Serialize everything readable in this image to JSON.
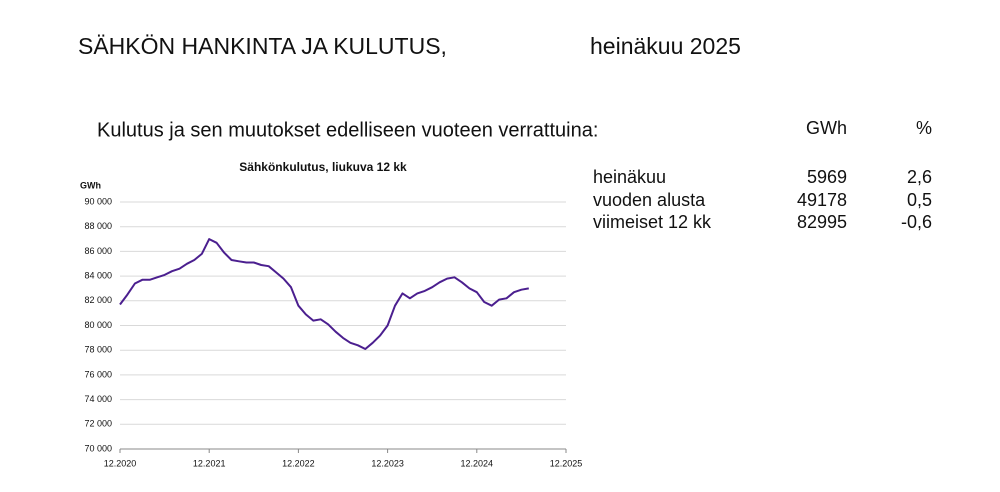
{
  "header": {
    "title": "SÄHKÖN HANKINTA JA KULUTUS,",
    "period": "heinäkuu 2025"
  },
  "subtitle": "Kulutus ja sen muutokset edelliseen vuoteen verrattuina:",
  "table": {
    "columns": [
      "GWh",
      "%"
    ],
    "rows": [
      [
        "heinäkuu",
        "5969",
        "2,6"
      ],
      [
        "vuoden alusta",
        "49178",
        "0,5"
      ],
      [
        "viimeiset 12 kk",
        "82995",
        "-0,6"
      ]
    ]
  },
  "chart_data": {
    "type": "line",
    "title": "Sähkönkulutus, liukuva 12 kk",
    "y_label": "GWh",
    "x": [
      "12.2020",
      "1.2021",
      "2.2021",
      "3.2021",
      "4.2021",
      "5.2021",
      "6.2021",
      "7.2021",
      "8.2021",
      "9.2021",
      "10.2021",
      "11.2021",
      "12.2021",
      "1.2022",
      "2.2022",
      "3.2022",
      "4.2022",
      "5.2022",
      "6.2022",
      "7.2022",
      "8.2022",
      "9.2022",
      "10.2022",
      "11.2022",
      "12.2022",
      "1.2023",
      "2.2023",
      "3.2023",
      "4.2023",
      "5.2023",
      "6.2023",
      "7.2023",
      "8.2023",
      "9.2023",
      "10.2023",
      "11.2023",
      "12.2023",
      "1.2024",
      "2.2024",
      "3.2024",
      "4.2024",
      "5.2024",
      "6.2024",
      "7.2024",
      "8.2024",
      "9.2024",
      "10.2024",
      "11.2024",
      "12.2024",
      "1.2025",
      "2.2025",
      "3.2025",
      "4.2025",
      "5.2025",
      "6.2025",
      "7.2025"
    ],
    "series": [
      {
        "color": "#4b1f8f",
        "values": [
          81700,
          82500,
          83400,
          83700,
          83700,
          83900,
          84100,
          84400,
          84600,
          85000,
          85300,
          85800,
          87000,
          86700,
          85900,
          85300,
          85200,
          85100,
          85100,
          84900,
          84800,
          84300,
          83800,
          83100,
          81600,
          80900,
          80400,
          80500,
          80100,
          79500,
          79000,
          78600,
          78400,
          78100,
          78600,
          79200,
          80000,
          81600,
          82600,
          82200,
          82600,
          82800,
          83100,
          83500,
          83800,
          83900,
          83500,
          83000,
          82700,
          81900,
          81600,
          82100,
          82200,
          82700,
          82900,
          83000
        ]
      }
    ],
    "xlim": [
      "12.2020",
      "12.2025"
    ],
    "xticks": [
      "12.2020",
      "12.2021",
      "12.2022",
      "12.2023",
      "12.2024",
      "12.2025"
    ],
    "ylim": [
      70000,
      90000
    ],
    "yticks": [
      {
        "value": 70000,
        "label": "70 000"
      },
      {
        "value": 72000,
        "label": "72 000"
      },
      {
        "value": 74000,
        "label": "74 000"
      },
      {
        "value": 76000,
        "label": "76 000"
      },
      {
        "value": 78000,
        "label": "78 000"
      },
      {
        "value": 80000,
        "label": "80 000"
      },
      {
        "value": 82000,
        "label": "82 000"
      },
      {
        "value": 84000,
        "label": "84 000"
      },
      {
        "value": 86000,
        "label": "86 000"
      },
      {
        "value": 88000,
        "label": "88 000"
      },
      {
        "value": 90000,
        "label": "90 000"
      }
    ],
    "grid": true
  }
}
